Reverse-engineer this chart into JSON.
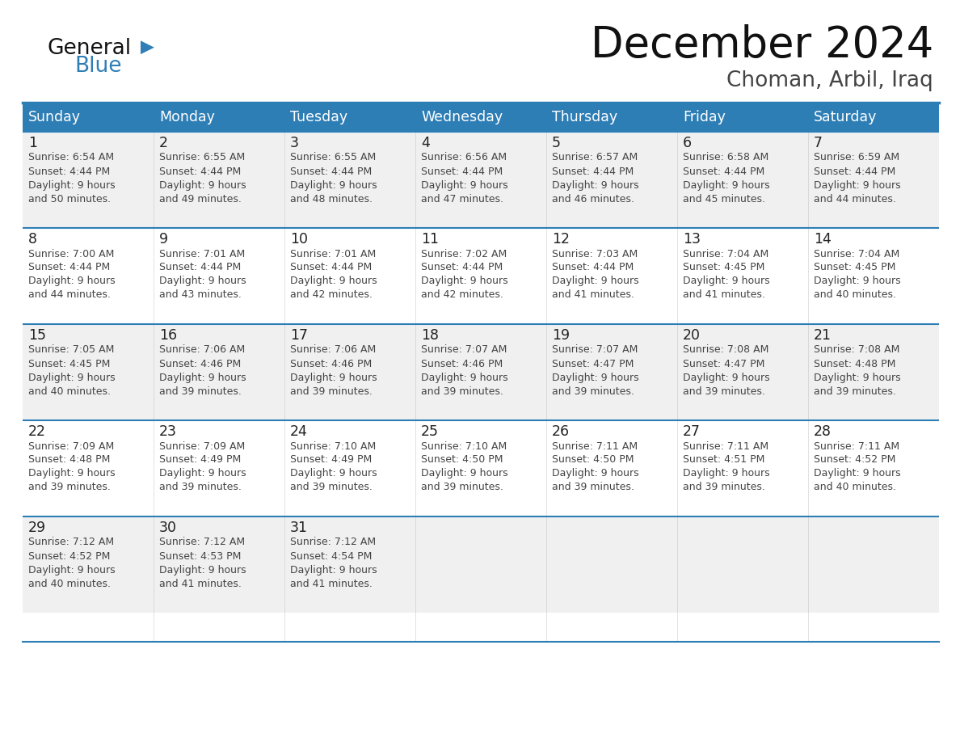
{
  "title": "December 2024",
  "subtitle": "Choman, Arbil, Iraq",
  "days_of_week": [
    "Sunday",
    "Monday",
    "Tuesday",
    "Wednesday",
    "Thursday",
    "Friday",
    "Saturday"
  ],
  "header_bg": "#2E7EB6",
  "header_text_color": "#FFFFFF",
  "cell_bg_white": "#FFFFFF",
  "cell_bg_gray": "#F0F0F0",
  "border_color": "#2E7EB6",
  "day_num_color": "#222222",
  "cell_text_color": "#444444",
  "title_color": "#111111",
  "subtitle_color": "#444444",
  "logo_general_color": "#111111",
  "logo_blue_color": "#2E7EB6",
  "weeks": [
    [
      {
        "day": 1,
        "sunrise": "6:54 AM",
        "sunset": "4:44 PM",
        "daylight_hours": 9,
        "daylight_minutes": 50
      },
      {
        "day": 2,
        "sunrise": "6:55 AM",
        "sunset": "4:44 PM",
        "daylight_hours": 9,
        "daylight_minutes": 49
      },
      {
        "day": 3,
        "sunrise": "6:55 AM",
        "sunset": "4:44 PM",
        "daylight_hours": 9,
        "daylight_minutes": 48
      },
      {
        "day": 4,
        "sunrise": "6:56 AM",
        "sunset": "4:44 PM",
        "daylight_hours": 9,
        "daylight_minutes": 47
      },
      {
        "day": 5,
        "sunrise": "6:57 AM",
        "sunset": "4:44 PM",
        "daylight_hours": 9,
        "daylight_minutes": 46
      },
      {
        "day": 6,
        "sunrise": "6:58 AM",
        "sunset": "4:44 PM",
        "daylight_hours": 9,
        "daylight_minutes": 45
      },
      {
        "day": 7,
        "sunrise": "6:59 AM",
        "sunset": "4:44 PM",
        "daylight_hours": 9,
        "daylight_minutes": 44
      }
    ],
    [
      {
        "day": 8,
        "sunrise": "7:00 AM",
        "sunset": "4:44 PM",
        "daylight_hours": 9,
        "daylight_minutes": 44
      },
      {
        "day": 9,
        "sunrise": "7:01 AM",
        "sunset": "4:44 PM",
        "daylight_hours": 9,
        "daylight_minutes": 43
      },
      {
        "day": 10,
        "sunrise": "7:01 AM",
        "sunset": "4:44 PM",
        "daylight_hours": 9,
        "daylight_minutes": 42
      },
      {
        "day": 11,
        "sunrise": "7:02 AM",
        "sunset": "4:44 PM",
        "daylight_hours": 9,
        "daylight_minutes": 42
      },
      {
        "day": 12,
        "sunrise": "7:03 AM",
        "sunset": "4:44 PM",
        "daylight_hours": 9,
        "daylight_minutes": 41
      },
      {
        "day": 13,
        "sunrise": "7:04 AM",
        "sunset": "4:45 PM",
        "daylight_hours": 9,
        "daylight_minutes": 41
      },
      {
        "day": 14,
        "sunrise": "7:04 AM",
        "sunset": "4:45 PM",
        "daylight_hours": 9,
        "daylight_minutes": 40
      }
    ],
    [
      {
        "day": 15,
        "sunrise": "7:05 AM",
        "sunset": "4:45 PM",
        "daylight_hours": 9,
        "daylight_minutes": 40
      },
      {
        "day": 16,
        "sunrise": "7:06 AM",
        "sunset": "4:46 PM",
        "daylight_hours": 9,
        "daylight_minutes": 39
      },
      {
        "day": 17,
        "sunrise": "7:06 AM",
        "sunset": "4:46 PM",
        "daylight_hours": 9,
        "daylight_minutes": 39
      },
      {
        "day": 18,
        "sunrise": "7:07 AM",
        "sunset": "4:46 PM",
        "daylight_hours": 9,
        "daylight_minutes": 39
      },
      {
        "day": 19,
        "sunrise": "7:07 AM",
        "sunset": "4:47 PM",
        "daylight_hours": 9,
        "daylight_minutes": 39
      },
      {
        "day": 20,
        "sunrise": "7:08 AM",
        "sunset": "4:47 PM",
        "daylight_hours": 9,
        "daylight_minutes": 39
      },
      {
        "day": 21,
        "sunrise": "7:08 AM",
        "sunset": "4:48 PM",
        "daylight_hours": 9,
        "daylight_minutes": 39
      }
    ],
    [
      {
        "day": 22,
        "sunrise": "7:09 AM",
        "sunset": "4:48 PM",
        "daylight_hours": 9,
        "daylight_minutes": 39
      },
      {
        "day": 23,
        "sunrise": "7:09 AM",
        "sunset": "4:49 PM",
        "daylight_hours": 9,
        "daylight_minutes": 39
      },
      {
        "day": 24,
        "sunrise": "7:10 AM",
        "sunset": "4:49 PM",
        "daylight_hours": 9,
        "daylight_minutes": 39
      },
      {
        "day": 25,
        "sunrise": "7:10 AM",
        "sunset": "4:50 PM",
        "daylight_hours": 9,
        "daylight_minutes": 39
      },
      {
        "day": 26,
        "sunrise": "7:11 AM",
        "sunset": "4:50 PM",
        "daylight_hours": 9,
        "daylight_minutes": 39
      },
      {
        "day": 27,
        "sunrise": "7:11 AM",
        "sunset": "4:51 PM",
        "daylight_hours": 9,
        "daylight_minutes": 39
      },
      {
        "day": 28,
        "sunrise": "7:11 AM",
        "sunset": "4:52 PM",
        "daylight_hours": 9,
        "daylight_minutes": 40
      }
    ],
    [
      {
        "day": 29,
        "sunrise": "7:12 AM",
        "sunset": "4:52 PM",
        "daylight_hours": 9,
        "daylight_minutes": 40
      },
      {
        "day": 30,
        "sunrise": "7:12 AM",
        "sunset": "4:53 PM",
        "daylight_hours": 9,
        "daylight_minutes": 41
      },
      {
        "day": 31,
        "sunrise": "7:12 AM",
        "sunset": "4:54 PM",
        "daylight_hours": 9,
        "daylight_minutes": 41
      },
      null,
      null,
      null,
      null
    ]
  ]
}
